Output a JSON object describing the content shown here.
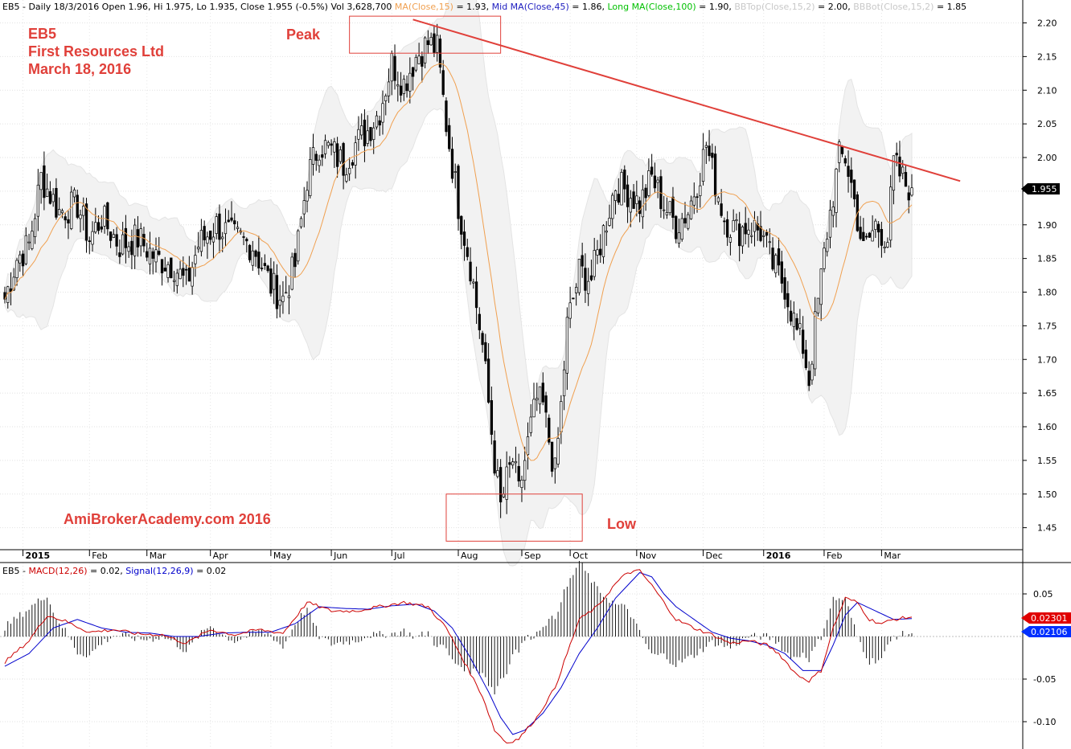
{
  "header": {
    "parts": [
      {
        "text": "EB5 - Daily 18/3/2016 Open 1.96, Hi 1.975, Lo 1.935, Close 1.955 (-0.5%) Vol 3,628,700 ",
        "color": "#000000"
      },
      {
        "text": "MA(Close,15)",
        "color": "#f0a050"
      },
      {
        "text": " = 1.93, ",
        "color": "#000000"
      },
      {
        "text": "Mid MA(Close,45)",
        "color": "#2020c0"
      },
      {
        "text": " = 1.86, ",
        "color": "#000000"
      },
      {
        "text": "Long MA(Close,100)",
        "color": "#00c000"
      },
      {
        "text": " = 1.90, ",
        "color": "#000000"
      },
      {
        "text": "BBTop(Close,15,2)",
        "color": "#c8c8c8"
      },
      {
        "text": " = 2.00, ",
        "color": "#000000"
      },
      {
        "text": "BBBot(Close,15,2)",
        "color": "#c8c8c8"
      },
      {
        "text": " = 1.85",
        "color": "#000000"
      }
    ]
  },
  "annotations": {
    "symbol": "EB5",
    "company": "First Resources Ltd",
    "date": "March 18, 2016",
    "peak_label": "Peak",
    "low_label": "Low",
    "watermark": "AmiBrokerAcademy.com  2016"
  },
  "last_price_label": "1.955",
  "macd": {
    "header": [
      {
        "text": "EB5 - ",
        "color": "#000000"
      },
      {
        "text": "MACD(12,26)",
        "color": "#cc0000"
      },
      {
        "text": " = 0.02, ",
        "color": "#000000"
      },
      {
        "text": "Signal(12,26,9)",
        "color": "#0000cc"
      },
      {
        "text": " = 0.02",
        "color": "#000000"
      }
    ],
    "macd_value_label": "0.02301",
    "signal_value_label": "0.02106"
  },
  "colors": {
    "candle": "#000000",
    "ma15": "#f0a050",
    "bollinger_fill": "#f2f2f2",
    "trendline": "#e0403a",
    "annotation": "#e0403a",
    "macd": "#cc0000",
    "signal": "#0000cc"
  },
  "chart_data": [
    {
      "type": "candlestick",
      "ylim": [
        1.42,
        2.24
      ],
      "y_ticks": [
        "2.20",
        "2.15",
        "2.10",
        "2.05",
        "2.00",
        "1.95",
        "1.90",
        "1.85",
        "1.80",
        "1.75",
        "1.70",
        "1.65",
        "1.60",
        "1.55",
        "1.50",
        "1.45"
      ],
      "x_labels": [
        {
          "label": "2015",
          "bold": true,
          "index": 6
        },
        {
          "label": "Feb",
          "index": 28
        },
        {
          "label": "Mar",
          "index": 47
        },
        {
          "label": "Apr",
          "index": 68
        },
        {
          "label": "May",
          "index": 88
        },
        {
          "label": "Jun",
          "index": 108
        },
        {
          "label": "Jul",
          "index": 128
        },
        {
          "label": "Aug",
          "index": 150
        },
        {
          "label": "Sep",
          "index": 171
        },
        {
          "label": "Oct",
          "index": 187
        },
        {
          "label": "Nov",
          "index": 209
        },
        {
          "label": "Dec",
          "index": 231
        },
        {
          "label": "2016",
          "bold": true,
          "index": 251
        },
        {
          "label": "Feb",
          "index": 271
        },
        {
          "label": "Mar",
          "index": 290
        }
      ],
      "anchors": [
        [
          0,
          1.79
        ],
        [
          4,
          1.85
        ],
        [
          8,
          1.87
        ],
        [
          12,
          1.97
        ],
        [
          18,
          1.92
        ],
        [
          24,
          1.93
        ],
        [
          28,
          1.88
        ],
        [
          32,
          1.91
        ],
        [
          38,
          1.87
        ],
        [
          44,
          1.88
        ],
        [
          50,
          1.85
        ],
        [
          56,
          1.84
        ],
        [
          60,
          1.81
        ],
        [
          64,
          1.87
        ],
        [
          70,
          1.9
        ],
        [
          76,
          1.88
        ],
        [
          82,
          1.87
        ],
        [
          88,
          1.81
        ],
        [
          92,
          1.79
        ],
        [
          96,
          1.84
        ],
        [
          100,
          1.97
        ],
        [
          104,
          2.02
        ],
        [
          108,
          2.01
        ],
        [
          112,
          1.99
        ],
        [
          116,
          2.02
        ],
        [
          120,
          2.04
        ],
        [
          124,
          2.07
        ],
        [
          128,
          2.14
        ],
        [
          132,
          2.11
        ],
        [
          136,
          2.15
        ],
        [
          140,
          2.17
        ],
        [
          143,
          2.16
        ],
        [
          146,
          2.05
        ],
        [
          150,
          1.93
        ],
        [
          154,
          1.84
        ],
        [
          158,
          1.72
        ],
        [
          162,
          1.55
        ],
        [
          164,
          1.48
        ],
        [
          166,
          1.52
        ],
        [
          168,
          1.55
        ],
        [
          170,
          1.5
        ],
        [
          172,
          1.55
        ],
        [
          174,
          1.6
        ],
        [
          176,
          1.64
        ],
        [
          178,
          1.63
        ],
        [
          180,
          1.58
        ],
        [
          182,
          1.53
        ],
        [
          184,
          1.63
        ],
        [
          186,
          1.75
        ],
        [
          190,
          1.83
        ],
        [
          194,
          1.82
        ],
        [
          198,
          1.89
        ],
        [
          202,
          1.96
        ],
        [
          206,
          1.95
        ],
        [
          210,
          1.93
        ],
        [
          214,
          1.97
        ],
        [
          218,
          1.93
        ],
        [
          222,
          1.9
        ],
        [
          226,
          1.92
        ],
        [
          230,
          1.98
        ],
        [
          232,
          2.02
        ],
        [
          234,
          1.98
        ],
        [
          238,
          1.91
        ],
        [
          242,
          1.89
        ],
        [
          246,
          1.9
        ],
        [
          250,
          1.89
        ],
        [
          254,
          1.84
        ],
        [
          258,
          1.81
        ],
        [
          262,
          1.74
        ],
        [
          264,
          1.72
        ],
        [
          266,
          1.67
        ],
        [
          268,
          1.75
        ],
        [
          272,
          1.89
        ],
        [
          276,
          2.0
        ],
        [
          278,
          2.0
        ],
        [
          280,
          1.96
        ],
        [
          284,
          1.86
        ],
        [
          288,
          1.9
        ],
        [
          292,
          1.88
        ],
        [
          294,
          1.99
        ],
        [
          298,
          1.96
        ],
        [
          300,
          1.955
        ]
      ],
      "ma15_label": "MA(Close,15)",
      "trendline": {
        "from": {
          "index": 135,
          "price": 2.205
        },
        "to": {
          "index": 316,
          "price": 1.965
        }
      },
      "peak_box": {
        "from_index": 114,
        "to_index": 164,
        "price_high": 2.21,
        "price_low": 2.155
      },
      "low_box": {
        "from_index": 146,
        "to_index": 191,
        "price_high": 1.5,
        "price_low": 1.43
      }
    },
    {
      "type": "line",
      "ylim": [
        -0.15,
        0.09
      ],
      "y_ticks": [
        "0.05",
        "-0.05",
        "-0.10"
      ],
      "series": [
        {
          "name": "MACD(12,26)",
          "color": "#cc0000"
        },
        {
          "name": "Signal(12,26,9)",
          "color": "#0000cc"
        }
      ],
      "macd_anchors": [
        [
          0,
          -0.03
        ],
        [
          8,
          -0.005
        ],
        [
          14,
          0.025
        ],
        [
          20,
          0.018
        ],
        [
          28,
          0.005
        ],
        [
          36,
          0.008
        ],
        [
          44,
          0.003
        ],
        [
          52,
          0.002
        ],
        [
          60,
          -0.008
        ],
        [
          68,
          0.008
        ],
        [
          76,
          0.002
        ],
        [
          84,
          0.008
        ],
        [
          92,
          0.004
        ],
        [
          100,
          0.04
        ],
        [
          108,
          0.03
        ],
        [
          116,
          0.03
        ],
        [
          124,
          0.035
        ],
        [
          132,
          0.04
        ],
        [
          140,
          0.035
        ],
        [
          146,
          0.01
        ],
        [
          152,
          -0.03
        ],
        [
          158,
          -0.07
        ],
        [
          162,
          -0.11
        ],
        [
          166,
          -0.125
        ],
        [
          170,
          -0.12
        ],
        [
          176,
          -0.095
        ],
        [
          182,
          -0.06
        ],
        [
          186,
          -0.02
        ],
        [
          190,
          0.02
        ],
        [
          196,
          0.035
        ],
        [
          202,
          0.062
        ],
        [
          206,
          0.075
        ],
        [
          210,
          0.077
        ],
        [
          214,
          0.06
        ],
        [
          218,
          0.04
        ],
        [
          222,
          0.02
        ],
        [
          228,
          0.01
        ],
        [
          234,
          0.002
        ],
        [
          240,
          -0.008
        ],
        [
          246,
          -0.005
        ],
        [
          252,
          -0.01
        ],
        [
          256,
          -0.02
        ],
        [
          262,
          -0.045
        ],
        [
          266,
          -0.052
        ],
        [
          270,
          -0.04
        ],
        [
          274,
          0.01
        ],
        [
          278,
          0.045
        ],
        [
          282,
          0.04
        ],
        [
          286,
          0.02
        ],
        [
          290,
          0.015
        ],
        [
          294,
          0.02
        ],
        [
          300,
          0.023
        ]
      ],
      "signal_anchors": [
        [
          0,
          -0.035
        ],
        [
          8,
          -0.02
        ],
        [
          16,
          0.01
        ],
        [
          24,
          0.02
        ],
        [
          32,
          0.01
        ],
        [
          40,
          0.005
        ],
        [
          48,
          0.004
        ],
        [
          56,
          0.0
        ],
        [
          64,
          0.0
        ],
        [
          72,
          0.004
        ],
        [
          80,
          0.005
        ],
        [
          88,
          0.005
        ],
        [
          96,
          0.015
        ],
        [
          104,
          0.035
        ],
        [
          112,
          0.033
        ],
        [
          120,
          0.032
        ],
        [
          128,
          0.036
        ],
        [
          136,
          0.038
        ],
        [
          142,
          0.03
        ],
        [
          148,
          0.01
        ],
        [
          154,
          -0.025
        ],
        [
          160,
          -0.065
        ],
        [
          164,
          -0.095
        ],
        [
          168,
          -0.115
        ],
        [
          172,
          -0.11
        ],
        [
          178,
          -0.09
        ],
        [
          184,
          -0.06
        ],
        [
          190,
          -0.02
        ],
        [
          196,
          0.01
        ],
        [
          202,
          0.045
        ],
        [
          206,
          0.06
        ],
        [
          210,
          0.075
        ],
        [
          214,
          0.07
        ],
        [
          218,
          0.05
        ],
        [
          222,
          0.035
        ],
        [
          228,
          0.02
        ],
        [
          234,
          0.005
        ],
        [
          240,
          -0.002
        ],
        [
          246,
          -0.005
        ],
        [
          252,
          -0.01
        ],
        [
          258,
          -0.02
        ],
        [
          264,
          -0.04
        ],
        [
          270,
          -0.04
        ],
        [
          274,
          -0.01
        ],
        [
          278,
          0.025
        ],
        [
          282,
          0.04
        ],
        [
          288,
          0.03
        ],
        [
          294,
          0.02
        ],
        [
          300,
          0.021
        ]
      ]
    }
  ]
}
